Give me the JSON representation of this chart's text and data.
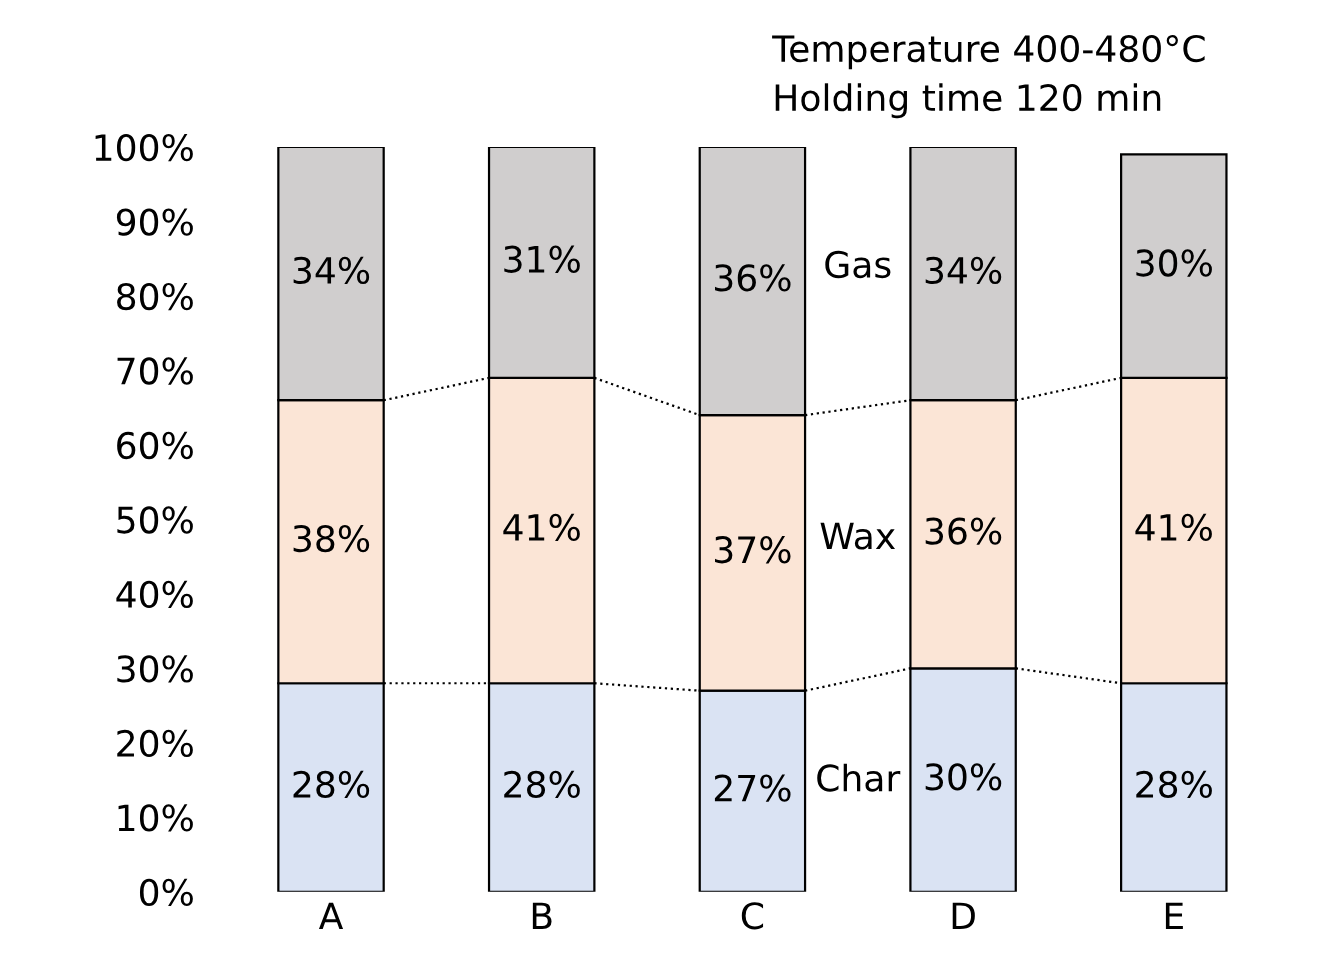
{
  "chart_data": {
    "type": "bar",
    "title": "Temperature 400-480°C",
    "subtitle": "Holding time 120 min",
    "categories": [
      "A",
      "B",
      "C",
      "D",
      "E"
    ],
    "stacked": true,
    "grid": false,
    "legend": false,
    "series": [
      {
        "name": "Char",
        "color": "#dae3f3",
        "values": [
          28,
          28,
          27,
          30,
          28
        ],
        "value_labels": [
          "28%",
          "28%",
          "27%",
          "30%",
          "28%"
        ]
      },
      {
        "name": "Wax",
        "color": "#fbe5d6",
        "values": [
          38,
          41,
          37,
          36,
          41
        ],
        "value_labels": [
          "38%",
          "41%",
          "37%",
          "36%",
          "41%"
        ]
      },
      {
        "name": "Gas",
        "color": "#d0cece",
        "values": [
          34,
          31,
          36,
          34,
          30
        ],
        "value_labels": [
          "34%",
          "31%",
          "36%",
          "34%",
          "30%"
        ]
      }
    ],
    "ylim": [
      0,
      100
    ],
    "yticks": [
      {
        "value": 0,
        "label": "0%"
      },
      {
        "value": 10,
        "label": "10%"
      },
      {
        "value": 20,
        "label": "20%"
      },
      {
        "value": 30,
        "label": "30%"
      },
      {
        "value": 40,
        "label": "40%"
      },
      {
        "value": 50,
        "label": "50%"
      },
      {
        "value": 60,
        "label": "60%"
      },
      {
        "value": 70,
        "label": "70%"
      },
      {
        "value": 80,
        "label": "80%"
      },
      {
        "value": 90,
        "label": "90%"
      },
      {
        "value": 100,
        "label": "100%"
      }
    ]
  }
}
